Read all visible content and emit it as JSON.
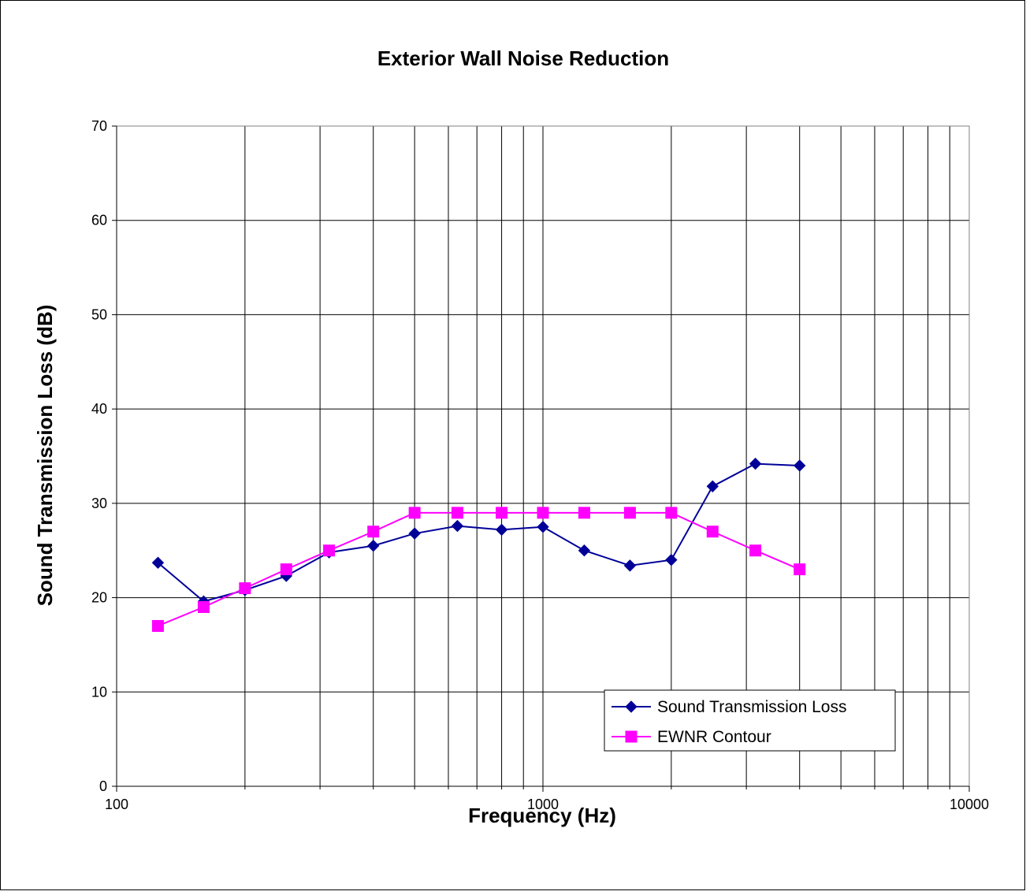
{
  "chart_data": {
    "type": "line",
    "title": "Exterior Wall Noise Reduction",
    "xlabel": "Frequency (Hz)",
    "ylabel": "Sound Transmission Loss (dB)",
    "x_scale": "log",
    "xlim": [
      100,
      10000
    ],
    "ylim": [
      0,
      70
    ],
    "x_ticks": [
      100,
      1000,
      10000
    ],
    "x_tick_labels": [
      "100",
      "1000",
      "10000"
    ],
    "y_ticks": [
      0,
      10,
      20,
      30,
      40,
      50,
      60,
      70
    ],
    "y_tick_labels": [
      "0",
      "10",
      "20",
      "30",
      "40",
      "50",
      "60",
      "70"
    ],
    "grid": true,
    "legend_position": "bottom-right",
    "x": [
      125,
      160,
      200,
      250,
      315,
      400,
      500,
      630,
      800,
      1000,
      1250,
      1600,
      2000,
      2500,
      3150,
      4000
    ],
    "series": [
      {
        "name": "Sound Transmission Loss",
        "color": "#000099",
        "marker": "diamond",
        "values": [
          23.7,
          19.6,
          20.8,
          22.3,
          24.8,
          25.5,
          26.8,
          27.6,
          27.2,
          27.5,
          25.0,
          23.4,
          24.0,
          31.8,
          34.2,
          34.0
        ]
      },
      {
        "name": "EWNR Contour",
        "color": "#FF00FF",
        "marker": "square",
        "values": [
          17,
          19,
          21,
          23,
          25,
          27,
          29,
          29,
          29,
          29,
          29,
          29,
          29,
          27,
          25,
          23
        ]
      }
    ]
  }
}
